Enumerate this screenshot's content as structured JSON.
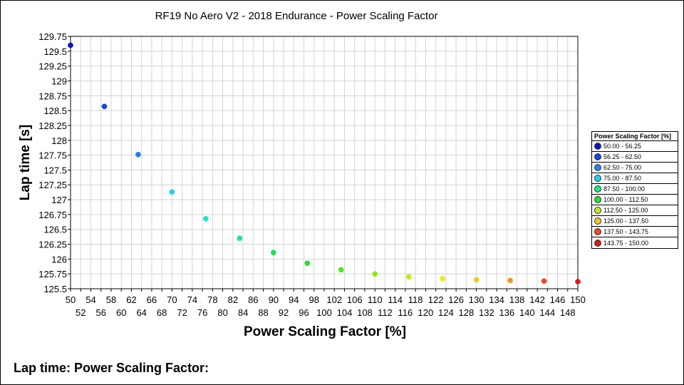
{
  "chart_data": {
    "type": "scatter",
    "title": "RF19 No Aero V2  -  2018 Endurance - Power Scaling Factor",
    "xlabel": "Power Scaling Factor [%]",
    "ylabel": "Lap time [s]",
    "xlim": [
      50,
      150
    ],
    "ylim": [
      125.5,
      129.75
    ],
    "x_ticks_top": [
      50,
      54,
      58,
      62,
      66,
      70,
      74,
      78,
      82,
      86,
      90,
      94,
      98,
      102,
      106,
      110,
      114,
      118,
      122,
      126,
      130,
      134,
      138,
      142,
      146,
      150
    ],
    "x_ticks_bottom": [
      52,
      56,
      60,
      64,
      68,
      72,
      76,
      80,
      84,
      88,
      92,
      96,
      100,
      104,
      108,
      112,
      116,
      120,
      124,
      128,
      132,
      136,
      140,
      144,
      148
    ],
    "y_ticks": [
      "125.5",
      "125.75",
      "126",
      "126.25",
      "126.5",
      "126.75",
      "127",
      "127.25",
      "127.5",
      "127.75",
      "128",
      "128.25",
      "128.5",
      "128.75",
      "129",
      "129.25",
      "129.5",
      "129.75"
    ],
    "grid": true,
    "legend_placement": "right",
    "points": [
      {
        "x": 50.0,
        "y": 129.6,
        "color": "#0a14c8"
      },
      {
        "x": 56.67,
        "y": 128.57,
        "color": "#1446e6"
      },
      {
        "x": 63.33,
        "y": 127.76,
        "color": "#1e82f0"
      },
      {
        "x": 70.0,
        "y": 127.13,
        "color": "#1ed2f0"
      },
      {
        "x": 76.67,
        "y": 126.68,
        "color": "#1ee6d2"
      },
      {
        "x": 83.33,
        "y": 126.35,
        "color": "#1ee68c"
      },
      {
        "x": 90.0,
        "y": 126.11,
        "color": "#14e650"
      },
      {
        "x": 96.67,
        "y": 125.93,
        "color": "#1ee628"
      },
      {
        "x": 103.33,
        "y": 125.82,
        "color": "#50e61e"
      },
      {
        "x": 110.0,
        "y": 125.75,
        "color": "#96e61e"
      },
      {
        "x": 116.67,
        "y": 125.7,
        "color": "#c8e61e"
      },
      {
        "x": 123.33,
        "y": 125.67,
        "color": "#f0e61e"
      },
      {
        "x": 130.0,
        "y": 125.65,
        "color": "#f0c81e"
      },
      {
        "x": 136.67,
        "y": 125.64,
        "color": "#f0961e"
      },
      {
        "x": 143.33,
        "y": 125.63,
        "color": "#f0461e"
      },
      {
        "x": 150.0,
        "y": 125.62,
        "color": "#e61414"
      }
    ]
  },
  "legend": {
    "title": "Power Scaling Factor [%]",
    "items": [
      {
        "label": "50.00 - 56.25",
        "color": "#0a14c8"
      },
      {
        "label": "56.25 - 62.50",
        "color": "#1446e6"
      },
      {
        "label": "62.50 - 75.00",
        "color": "#1e82f0"
      },
      {
        "label": "75.00 - 87.50",
        "color": "#1ed2f0"
      },
      {
        "label": "87.50 - 100.00",
        "color": "#1ee68c"
      },
      {
        "label": "100.00 - 112.50",
        "color": "#1ee628"
      },
      {
        "label": "112.50 - 125.00",
        "color": "#c8e61e"
      },
      {
        "label": "125.00 - 137.50",
        "color": "#f0c81e"
      },
      {
        "label": "137.50 - 143.75",
        "color": "#f0461e"
      },
      {
        "label": "143.75 - 150.00",
        "color": "#e61414"
      }
    ]
  },
  "footer": {
    "label": "Lap time: Power Scaling Factor:"
  }
}
